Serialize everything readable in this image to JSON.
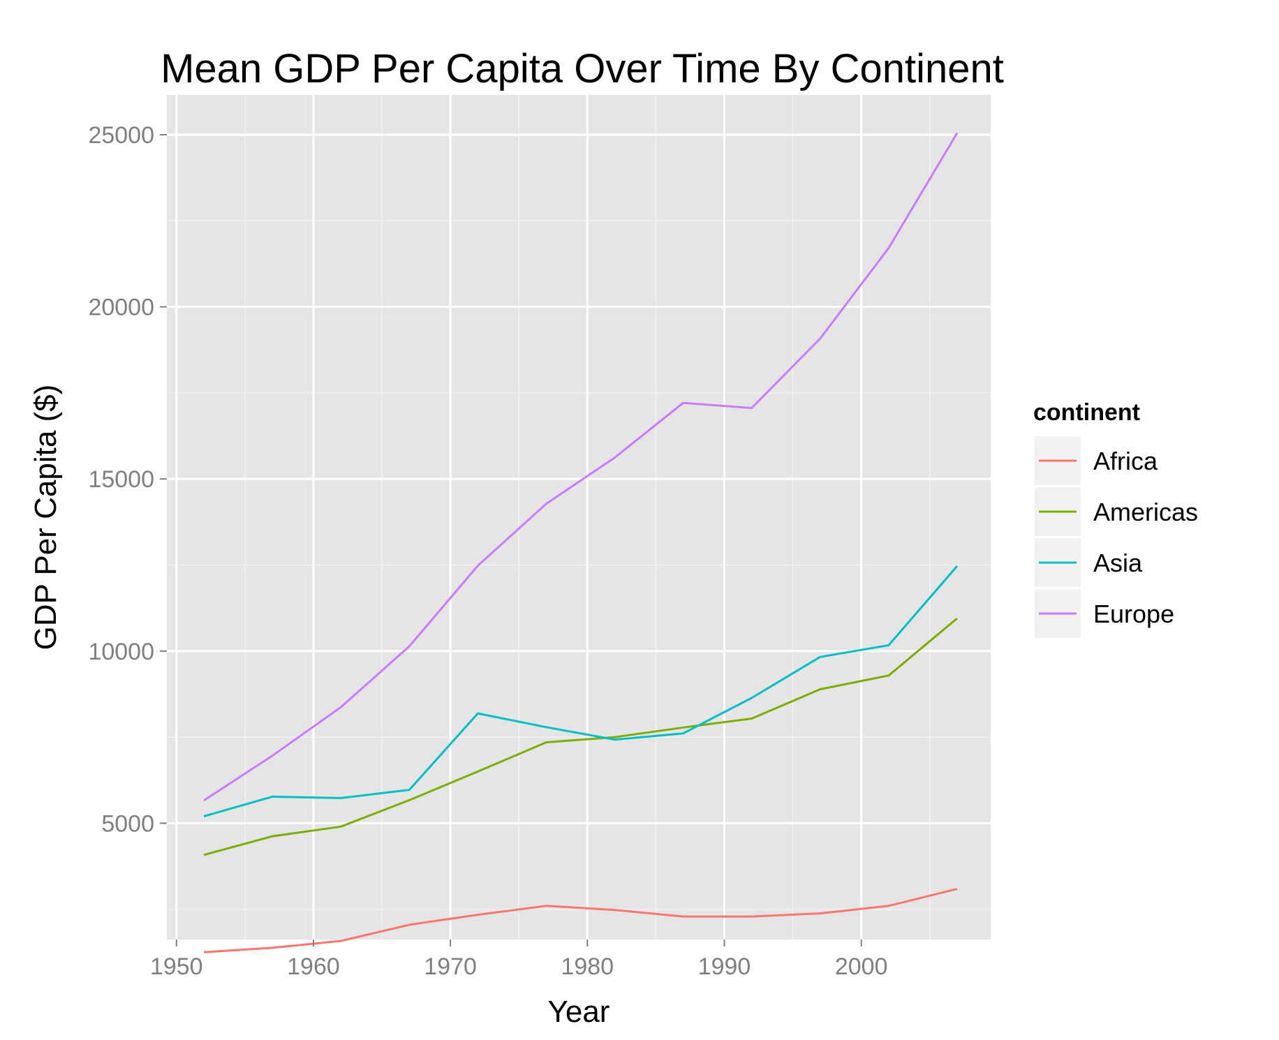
{
  "chart_data": {
    "type": "line",
    "title": "Mean GDP Per Capita Over Time By Continent",
    "xlabel": "Year",
    "ylabel": "GDP Per Capita ($)",
    "xlim": [
      1950,
      2010
    ],
    "ylim": [
      0,
      26000
    ],
    "x_ticks": [
      1950,
      1960,
      1970,
      1980,
      1990,
      2000
    ],
    "y_ticks": [
      5000,
      10000,
      15000,
      20000,
      25000
    ],
    "grid": true,
    "legend": {
      "title": "continent",
      "placement": "right"
    },
    "x": [
      1952,
      1957,
      1962,
      1967,
      1972,
      1977,
      1982,
      1987,
      1992,
      1997,
      2002,
      2007
    ],
    "series": [
      {
        "name": "Africa",
        "color": "#F8766D",
        "values": [
          1250,
          1380,
          1580,
          2050,
          2340,
          2600,
          2480,
          2290,
          2290,
          2380,
          2600,
          3090
        ]
      },
      {
        "name": "Americas",
        "color": "#7CAE00",
        "values": [
          4080,
          4620,
          4900,
          5670,
          6500,
          7350,
          7500,
          7780,
          8040,
          8890,
          9290,
          10950
        ]
      },
      {
        "name": "Asia",
        "color": "#00BFC4",
        "values": [
          5200,
          5770,
          5730,
          5970,
          8190,
          7790,
          7430,
          7610,
          8640,
          9830,
          10170,
          12470
        ]
      },
      {
        "name": "Europe",
        "color": "#C77CFF",
        "values": [
          5660,
          6960,
          8370,
          10140,
          12480,
          14280,
          15620,
          17210,
          17060,
          19080,
          21710,
          25050
        ]
      }
    ]
  }
}
